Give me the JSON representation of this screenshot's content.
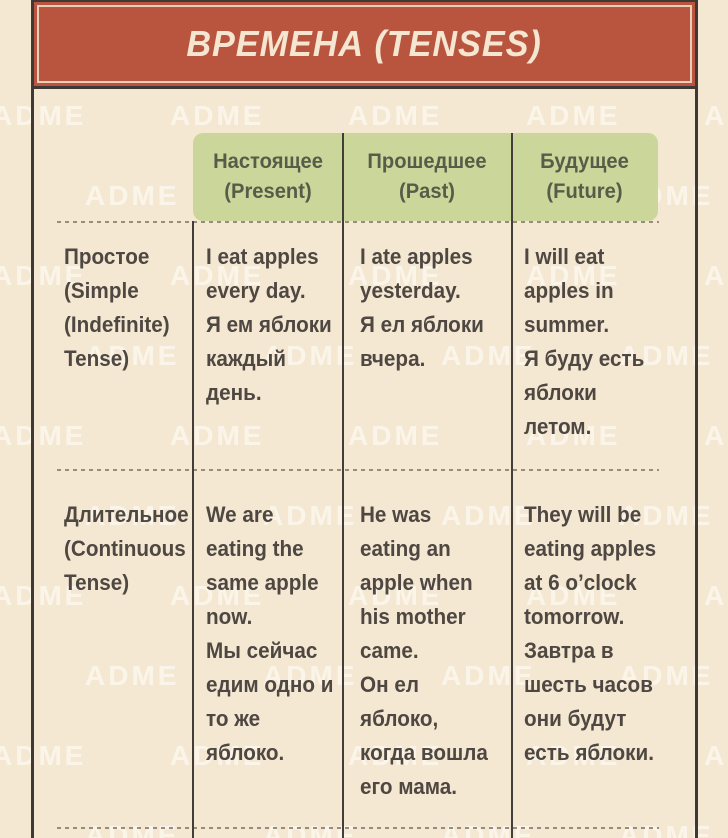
{
  "title": "ВРЕМЕНА (TENSES)",
  "watermark": {
    "text": "ADME"
  },
  "table": {
    "columns": [
      {
        "id": "present",
        "label": "Настоящее\n(Present)"
      },
      {
        "id": "past",
        "label": "Прошедшее\n(Past)"
      },
      {
        "id": "future",
        "label": "Будущее\n(Future)"
      }
    ],
    "rows": [
      {
        "header": "Простое\n(Simple\n(Indefinite)\nTense)",
        "present": "I eat apples\nevery day.\nЯ ем яблоки\nкаждый\nдень.",
        "past": "I ate apples\nyesterday.\nЯ ел яблоки\nвчера.",
        "future": "I will eat\napples in\nsummer.\nЯ буду есть\nяблоки\nлетом."
      },
      {
        "header": "Длительное\n(Continuous\nTense)",
        "present": "We are\neating the\nsame apple\nnow.\nМы сейчас\nедим одно и\nто же\nяблоко.",
        "past": "He was\neating an\napple when\nhis mother\ncame.\nОн ел\nяблоко,\nкогда вошла\nего мама.",
        "future": "They will be\neating apples\nat 6 o’clock\ntomorrow.\nЗавтра в\nшесть часов\nони будут\nесть яблоки."
      }
    ]
  },
  "colors": {
    "background": "#f5e8d3",
    "banner": "#b9553f",
    "banner_text": "#f4e6d0",
    "header_bg": "#cbd79a",
    "header_text": "#575c49",
    "body_text": "#4f4842",
    "border": "#3f3835"
  }
}
